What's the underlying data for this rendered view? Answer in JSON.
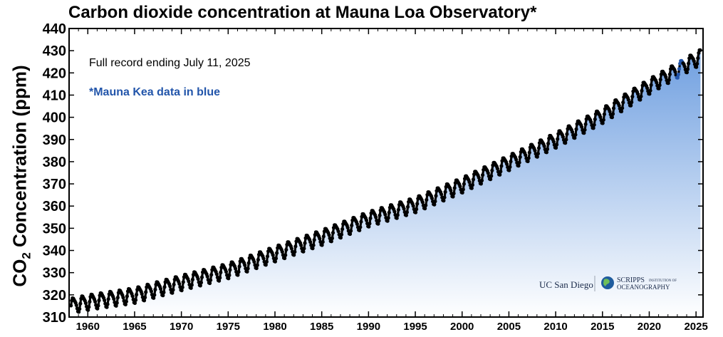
{
  "chart_data": {
    "type": "line",
    "title": "Carbon dioxide concentration at Mauna Loa Observatory*",
    "ylabel_main": "CO",
    "ylabel_sub": "2",
    "ylabel_rest": " Concentration (ppm)",
    "xlabel": "",
    "xlim": [
      1958.0,
      2025.75
    ],
    "ylim": [
      310,
      440
    ],
    "x_ticks": [
      1960,
      1965,
      1970,
      1975,
      1980,
      1985,
      1990,
      1995,
      2000,
      2005,
      2010,
      2015,
      2020,
      2025
    ],
    "y_ticks": [
      310,
      320,
      330,
      340,
      350,
      360,
      370,
      380,
      390,
      400,
      410,
      420,
      430,
      440
    ],
    "annotations": {
      "record_note": "Full record ending July 11, 2025",
      "mauna_kea_note": "*Mauna Kea data in blue"
    },
    "trend_anchors": {
      "years": [
        1958.2,
        1960,
        1965,
        1970,
        1975,
        1980,
        1985,
        1990,
        1995,
        2000,
        2005,
        2010,
        2015,
        2020,
        2025.5
      ],
      "ppm": [
        315.3,
        316.9,
        320.0,
        325.7,
        331.1,
        338.7,
        346.1,
        354.4,
        360.8,
        369.7,
        379.8,
        389.9,
        401.0,
        414.2,
        427.5
      ]
    },
    "seasonal_amplitude_ppm": 3.2,
    "series_color": "#000000",
    "mauna_kea_color": "#2255aa",
    "fill_top_color": "#6f9fe0",
    "fill_bottom_color": "#ffffff",
    "logos": {
      "ucsd": "UC San Diego",
      "scripps_line1": "SCRIPPS",
      "scripps_small": "INSTITUTION OF",
      "scripps_line2": "OCEANOGRAPHY"
    }
  }
}
